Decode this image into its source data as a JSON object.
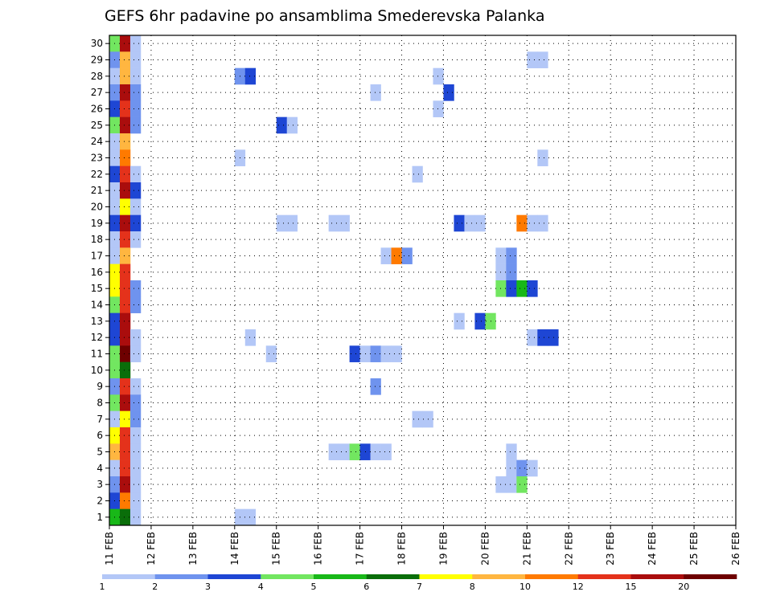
{
  "chart_data": {
    "type": "heatmap",
    "title": "GEFS 6hr padavine po ansamblima Smederevska Palanka",
    "xlabel": "",
    "ylabel": "",
    "x_tick_labels": [
      "11 FEB",
      "12 FEB",
      "13 FEB",
      "14 FEB",
      "15 FEB",
      "16 FEB",
      "17 FEB",
      "18 FEB",
      "19 FEB",
      "20 FEB",
      "21 FEB",
      "22 FEB",
      "23 FEB",
      "24 FEB",
      "25 FEB",
      "26 FEB"
    ],
    "y_tick_labels": [
      "1",
      "2",
      "3",
      "4",
      "5",
      "6",
      "7",
      "8",
      "9",
      "10",
      "11",
      "12",
      "13",
      "14",
      "15",
      "16",
      "17",
      "18",
      "19",
      "20",
      "21",
      "22",
      "23",
      "24",
      "25",
      "26",
      "27",
      "28",
      "29",
      "30"
    ],
    "x_range_days": [
      0,
      15
    ],
    "time_step_hours": 6,
    "members": 30,
    "grid": "dotted",
    "legend_position": "bottom",
    "legend": {
      "bins": [
        {
          "color": "#b3c7f7"
        },
        {
          "color": "#6f93ee"
        },
        {
          "color": "#1e46d4"
        },
        {
          "color": "#72e660"
        },
        {
          "color": "#18b818"
        },
        {
          "color": "#0a6e0a"
        },
        {
          "color": "#ffff00"
        },
        {
          "color": "#ffb640"
        },
        {
          "color": "#ff7a00"
        },
        {
          "color": "#e4321b"
        },
        {
          "color": "#aa0d0d"
        },
        {
          "color": "#6e0000"
        }
      ],
      "labels": [
        {
          "pos": 0,
          "text": "1"
        },
        {
          "pos": 1,
          "text": "2"
        },
        {
          "pos": 2,
          "text": "3"
        },
        {
          "pos": 3,
          "text": "4"
        },
        {
          "pos": 4,
          "text": "5"
        },
        {
          "pos": 5,
          "text": "6"
        },
        {
          "pos": 6,
          "text": "7"
        },
        {
          "pos": 7,
          "text": "8"
        },
        {
          "pos": 8,
          "text": "10"
        },
        {
          "pos": 9,
          "text": "12"
        },
        {
          "pos": 10,
          "text": "15"
        },
        {
          "pos": 11,
          "text": "20"
        }
      ]
    },
    "cells": [
      [
        0,
        30,
        4
      ],
      [
        1,
        30,
        11
      ],
      [
        2,
        30,
        1
      ],
      [
        0,
        29,
        2
      ],
      [
        1,
        29,
        8
      ],
      [
        2,
        29,
        1
      ],
      [
        0,
        28,
        1
      ],
      [
        1,
        28,
        8
      ],
      [
        2,
        28,
        1
      ],
      [
        0,
        27,
        2
      ],
      [
        1,
        27,
        11
      ],
      [
        2,
        27,
        2
      ],
      [
        0,
        26,
        3
      ],
      [
        1,
        26,
        10
      ],
      [
        2,
        26,
        2
      ],
      [
        0,
        25,
        4
      ],
      [
        1,
        25,
        11
      ],
      [
        2,
        25,
        2
      ],
      [
        0,
        24,
        1
      ],
      [
        1,
        24,
        8
      ],
      [
        0,
        23,
        1
      ],
      [
        1,
        23,
        9
      ],
      [
        0,
        22,
        3
      ],
      [
        1,
        22,
        10
      ],
      [
        2,
        22,
        1
      ],
      [
        0,
        21,
        1
      ],
      [
        1,
        21,
        11
      ],
      [
        2,
        21,
        3
      ],
      [
        0,
        20,
        1
      ],
      [
        1,
        20,
        7
      ],
      [
        2,
        20,
        1
      ],
      [
        0,
        19,
        3
      ],
      [
        1,
        19,
        11
      ],
      [
        2,
        19,
        3
      ],
      [
        0,
        18,
        1
      ],
      [
        1,
        18,
        10
      ],
      [
        2,
        18,
        1
      ],
      [
        0,
        17,
        1
      ],
      [
        1,
        17,
        8
      ],
      [
        0,
        16,
        7
      ],
      [
        1,
        16,
        10
      ],
      [
        0,
        15,
        7
      ],
      [
        1,
        15,
        10
      ],
      [
        2,
        15,
        2
      ],
      [
        0,
        14,
        4
      ],
      [
        1,
        14,
        10
      ],
      [
        2,
        14,
        2
      ],
      [
        0,
        13,
        3
      ],
      [
        1,
        13,
        11
      ],
      [
        0,
        12,
        3
      ],
      [
        1,
        12,
        11
      ],
      [
        2,
        12,
        1
      ],
      [
        0,
        11,
        4
      ],
      [
        1,
        11,
        12
      ],
      [
        2,
        11,
        1
      ],
      [
        0,
        10,
        4
      ],
      [
        1,
        10,
        6
      ],
      [
        0,
        9,
        2
      ],
      [
        1,
        9,
        10
      ],
      [
        2,
        9,
        1
      ],
      [
        0,
        8,
        4
      ],
      [
        1,
        8,
        11
      ],
      [
        2,
        8,
        2
      ],
      [
        0,
        7,
        1
      ],
      [
        1,
        7,
        7
      ],
      [
        2,
        7,
        2
      ],
      [
        0,
        6,
        7
      ],
      [
        1,
        6,
        10
      ],
      [
        2,
        6,
        1
      ],
      [
        0,
        5,
        8
      ],
      [
        1,
        5,
        10
      ],
      [
        2,
        5,
        1
      ],
      [
        0,
        4,
        1
      ],
      [
        1,
        4,
        10
      ],
      [
        2,
        4,
        1
      ],
      [
        0,
        3,
        2
      ],
      [
        1,
        3,
        11
      ],
      [
        2,
        3,
        1
      ],
      [
        0,
        2,
        3
      ],
      [
        1,
        2,
        9
      ],
      [
        2,
        2,
        1
      ],
      [
        0,
        1,
        5
      ],
      [
        1,
        1,
        6
      ],
      [
        2,
        1,
        1
      ],
      [
        12,
        28,
        2
      ],
      [
        13,
        28,
        3
      ],
      [
        12,
        23,
        1
      ],
      [
        12,
        1,
        1
      ],
      [
        13,
        1,
        1
      ],
      [
        13,
        12,
        1
      ],
      [
        15,
        11,
        1
      ],
      [
        16,
        25,
        3
      ],
      [
        17,
        25,
        1
      ],
      [
        16,
        19,
        1
      ],
      [
        17,
        19,
        1
      ],
      [
        21,
        19,
        1
      ],
      [
        22,
        19,
        1
      ],
      [
        21,
        5,
        1
      ],
      [
        22,
        5,
        1
      ],
      [
        23,
        5,
        4
      ],
      [
        24,
        5,
        3
      ],
      [
        25,
        5,
        1
      ],
      [
        23,
        11,
        3
      ],
      [
        24,
        11,
        1
      ],
      [
        25,
        11,
        2
      ],
      [
        25,
        27,
        1
      ],
      [
        25,
        9,
        2
      ],
      [
        26,
        17,
        1
      ],
      [
        27,
        17,
        9
      ],
      [
        28,
        17,
        2
      ],
      [
        26,
        11,
        1
      ],
      [
        27,
        11,
        1
      ],
      [
        26,
        5,
        1
      ],
      [
        29,
        22,
        1
      ],
      [
        29,
        7,
        1
      ],
      [
        30,
        7,
        1
      ],
      [
        31,
        28,
        1
      ],
      [
        31,
        26,
        1
      ],
      [
        32,
        27,
        3
      ],
      [
        33,
        19,
        3
      ],
      [
        34,
        19,
        1
      ],
      [
        35,
        19,
        1
      ],
      [
        33,
        13,
        1
      ],
      [
        35,
        13,
        3
      ],
      [
        36,
        13,
        4
      ],
      [
        37,
        17,
        1
      ],
      [
        38,
        17,
        2
      ],
      [
        37,
        16,
        1
      ],
      [
        38,
        16,
        2
      ],
      [
        37,
        15,
        4
      ],
      [
        38,
        15,
        3
      ],
      [
        39,
        15,
        5
      ],
      [
        40,
        15,
        3
      ],
      [
        39,
        19,
        9
      ],
      [
        40,
        19,
        1
      ],
      [
        41,
        19,
        1
      ],
      [
        40,
        29,
        1
      ],
      [
        41,
        29,
        1
      ],
      [
        41,
        23,
        1
      ],
      [
        40,
        12,
        1
      ],
      [
        41,
        12,
        3
      ],
      [
        42,
        12,
        3
      ],
      [
        38,
        5,
        1
      ],
      [
        38,
        4,
        1
      ],
      [
        39,
        4,
        2
      ],
      [
        40,
        4,
        1
      ],
      [
        37,
        3,
        1
      ],
      [
        38,
        3,
        1
      ],
      [
        39,
        3,
        4
      ]
    ]
  }
}
